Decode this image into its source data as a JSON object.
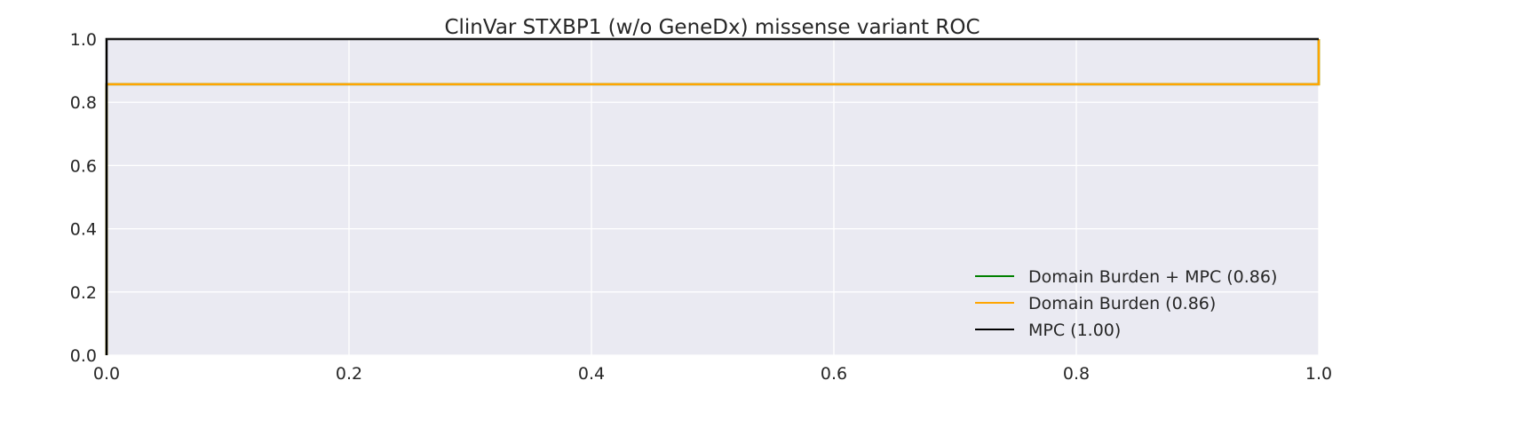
{
  "chart_data": {
    "type": "line",
    "title": "ClinVar STXBP1 (w/o GeneDx) missense variant ROC",
    "xlabel": "",
    "ylabel": "",
    "xlim": [
      0.0,
      1.0
    ],
    "ylim": [
      0.0,
      1.0
    ],
    "x_ticks": [
      "0.0",
      "0.2",
      "0.4",
      "0.6",
      "0.8",
      "1.0"
    ],
    "y_ticks": [
      "0.0",
      "0.2",
      "0.4",
      "0.6",
      "0.8",
      "1.0"
    ],
    "grid": true,
    "legend_position": "lower-right",
    "background_color": "#eaeaf2",
    "grid_color": "#ffffff",
    "series": [
      {
        "name": "Domain Burden + MPC (0.86)",
        "color": "#008000",
        "x": [
          0.0,
          0.0,
          1.0,
          1.0
        ],
        "y": [
          0.0,
          0.857,
          0.857,
          1.0
        ]
      },
      {
        "name": "Domain Burden (0.86)",
        "color": "#ffa500",
        "x": [
          0.0,
          0.0,
          1.0,
          1.0
        ],
        "y": [
          0.0,
          0.857,
          0.857,
          1.0
        ]
      },
      {
        "name": "MPC (1.00)",
        "color": "#000000",
        "x": [
          0.0,
          0.0,
          0.0,
          1.0
        ],
        "y": [
          0.0,
          0.07,
          1.0,
          1.0
        ]
      }
    ]
  }
}
